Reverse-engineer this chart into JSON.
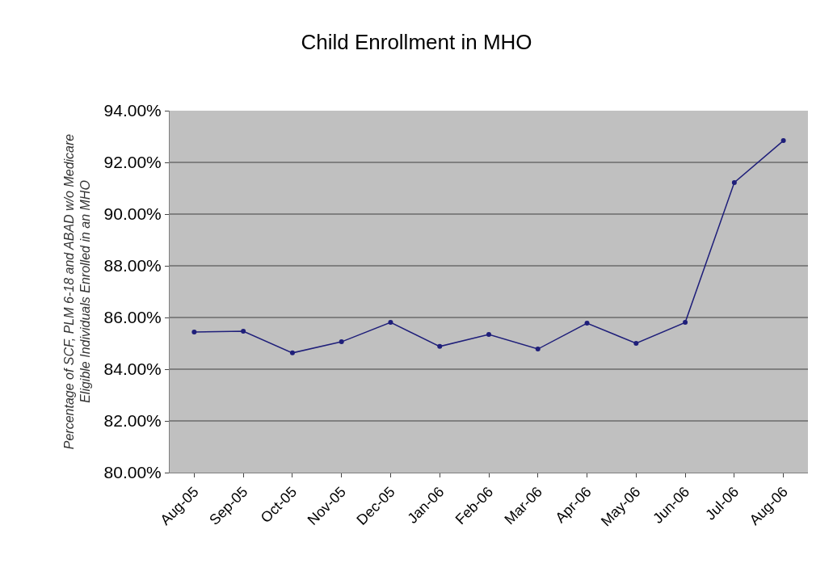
{
  "chart_data": {
    "type": "line",
    "title": "Child Enrollment in MHO",
    "ylabel": "Percentage of SCF, PLM 6-18 and ABAD w/o Medicare\nEligible Individuals Enrolled in an MHO",
    "categories": [
      "Aug-05",
      "Sep-05",
      "Oct-05",
      "Nov-05",
      "Dec-05",
      "Jan-06",
      "Feb-06",
      "Mar-06",
      "Apr-06",
      "May-06",
      "Jun-06",
      "Jul-06",
      "Aug-06"
    ],
    "series": [
      {
        "color": "#1f1f7a",
        "values": [
          85.44,
          85.47,
          84.63,
          85.06,
          85.81,
          84.88,
          85.34,
          84.78,
          85.78,
          85.0,
          85.81,
          91.22,
          92.84
        ]
      }
    ],
    "ylim": [
      80,
      94
    ],
    "yticks": [
      {
        "value": 80,
        "label": "80.00%"
      },
      {
        "value": 82,
        "label": "82.00%"
      },
      {
        "value": 84,
        "label": "84.00%"
      },
      {
        "value": 86,
        "label": "86.00%"
      },
      {
        "value": 88,
        "label": "88.00%"
      },
      {
        "value": 90,
        "label": "90.00%"
      },
      {
        "value": 92,
        "label": "92.00%"
      },
      {
        "value": 94,
        "label": "94.00%"
      }
    ],
    "grid": "y",
    "marker": "circle",
    "line_style": "solid"
  }
}
